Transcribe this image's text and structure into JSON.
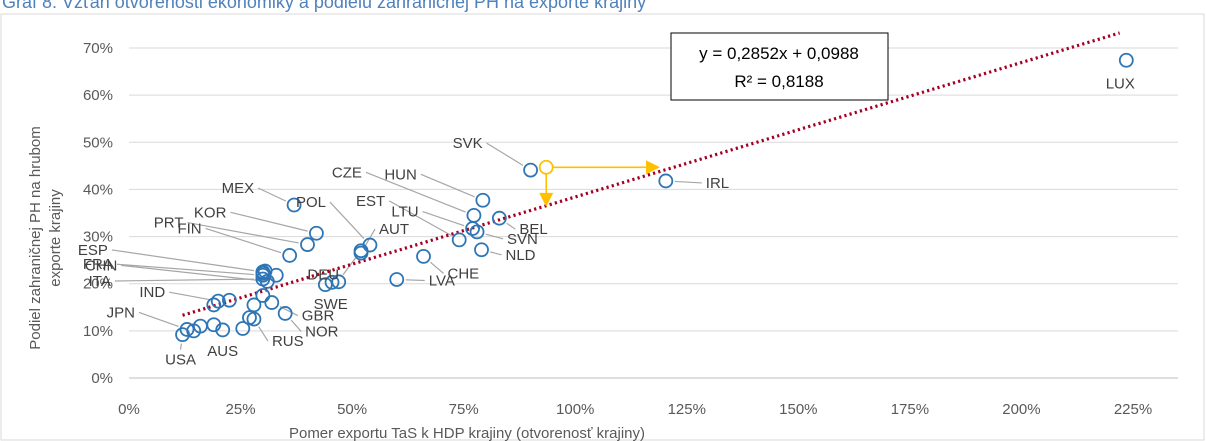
{
  "chart_data": {
    "type": "scatter",
    "title": "Graf 8: Vzťah otvorenosti ekonomiky a podielu zahraničnej PH na exporte krajiny",
    "xlabel": "Pomer exportu TaS k HDP krajiny (otvorenosť krajiny)",
    "ylabel_lines": [
      "Podiel zahraničnej PH na hrubom",
      "exporte krajiny"
    ],
    "xlim": [
      0,
      2.25
    ],
    "ylim": [
      0,
      0.7
    ],
    "x_ticks": [
      "0%",
      "25%",
      "50%",
      "75%",
      "100%",
      "125%",
      "150%",
      "175%",
      "200%",
      "225%"
    ],
    "y_ticks": [
      "0%",
      "10%",
      "20%",
      "30%",
      "40%",
      "50%",
      "60%",
      "70%"
    ],
    "grid": "horizontal",
    "trendline": {
      "type": "linear",
      "slope": 0.2852,
      "intercept": 0.0988,
      "x_range": [
        0.12,
        2.22
      ],
      "equation": "y = 0,2852x + 0,0988",
      "r2": "R² = 0,8188",
      "color": "#a50021"
    },
    "marker_color": "#2e75b6",
    "highlight_color": "#ffc000",
    "points": [
      {
        "x": 2.235,
        "y": 0.674,
        "label": "LUX"
      },
      {
        "x": 1.203,
        "y": 0.418,
        "label": "IRL"
      },
      {
        "x": 0.9,
        "y": 0.441,
        "label": "SVK"
      },
      {
        "x": 0.793,
        "y": 0.377,
        "label": "HUN"
      },
      {
        "x": 0.773,
        "y": 0.345,
        "label": "CZE"
      },
      {
        "x": 0.77,
        "y": 0.317,
        "label": "LTU"
      },
      {
        "x": 0.83,
        "y": 0.339,
        "label": "BEL"
      },
      {
        "x": 0.74,
        "y": 0.293,
        "label": "EST"
      },
      {
        "x": 0.78,
        "y": 0.31,
        "label": "SVN"
      },
      {
        "x": 0.79,
        "y": 0.272,
        "label": "NLD"
      },
      {
        "x": 0.66,
        "y": 0.258,
        "label": "CHE"
      },
      {
        "x": 0.6,
        "y": 0.209,
        "label": "LVA"
      },
      {
        "x": 0.37,
        "y": 0.367,
        "label": "MEX"
      },
      {
        "x": 0.42,
        "y": 0.307,
        "label": "KOR"
      },
      {
        "x": 0.4,
        "y": 0.283,
        "label": "PRT"
      },
      {
        "x": 0.36,
        "y": 0.26,
        "label": "FIN"
      },
      {
        "x": 0.54,
        "y": 0.282,
        "label": "POL"
      },
      {
        "x": 0.52,
        "y": 0.265,
        "label": "AUT"
      },
      {
        "x": 0.52,
        "y": 0.27,
        "label": "DEU"
      },
      {
        "x": 0.47,
        "y": 0.204,
        "label": "SWE"
      },
      {
        "x": 0.3,
        "y": 0.225,
        "label": "ESP"
      },
      {
        "x": 0.3,
        "y": 0.218,
        "label": "FRA"
      },
      {
        "x": 0.3,
        "y": 0.21,
        "label": "ITA"
      },
      {
        "x": 0.31,
        "y": 0.205,
        "label": "CHN"
      },
      {
        "x": 0.2,
        "y": 0.163,
        "label": "IND"
      },
      {
        "x": 0.32,
        "y": 0.16,
        "label": "GBR"
      },
      {
        "x": 0.35,
        "y": 0.137,
        "label": "NOR"
      },
      {
        "x": 0.28,
        "y": 0.125,
        "label": "RUS"
      },
      {
        "x": 0.12,
        "y": 0.092,
        "label": "USA"
      },
      {
        "x": 0.21,
        "y": 0.102,
        "label": "AUS"
      },
      {
        "x": 0.13,
        "y": 0.103,
        "label": "JPN"
      },
      {
        "x": 0.3,
        "y": 0.222
      },
      {
        "x": 0.305,
        "y": 0.227
      },
      {
        "x": 0.33,
        "y": 0.218
      },
      {
        "x": 0.44,
        "y": 0.198
      },
      {
        "x": 0.455,
        "y": 0.203
      },
      {
        "x": 0.19,
        "y": 0.155
      },
      {
        "x": 0.225,
        "y": 0.165
      },
      {
        "x": 0.28,
        "y": 0.155
      },
      {
        "x": 0.3,
        "y": 0.175
      },
      {
        "x": 0.27,
        "y": 0.128
      },
      {
        "x": 0.255,
        "y": 0.105
      },
      {
        "x": 0.19,
        "y": 0.113
      },
      {
        "x": 0.16,
        "y": 0.11
      },
      {
        "x": 0.145,
        "y": 0.1
      }
    ],
    "highlight": {
      "x": 0.935,
      "y": 0.447,
      "arrow_x_to": 1.19,
      "arrow_y_to": 0.363
    }
  }
}
